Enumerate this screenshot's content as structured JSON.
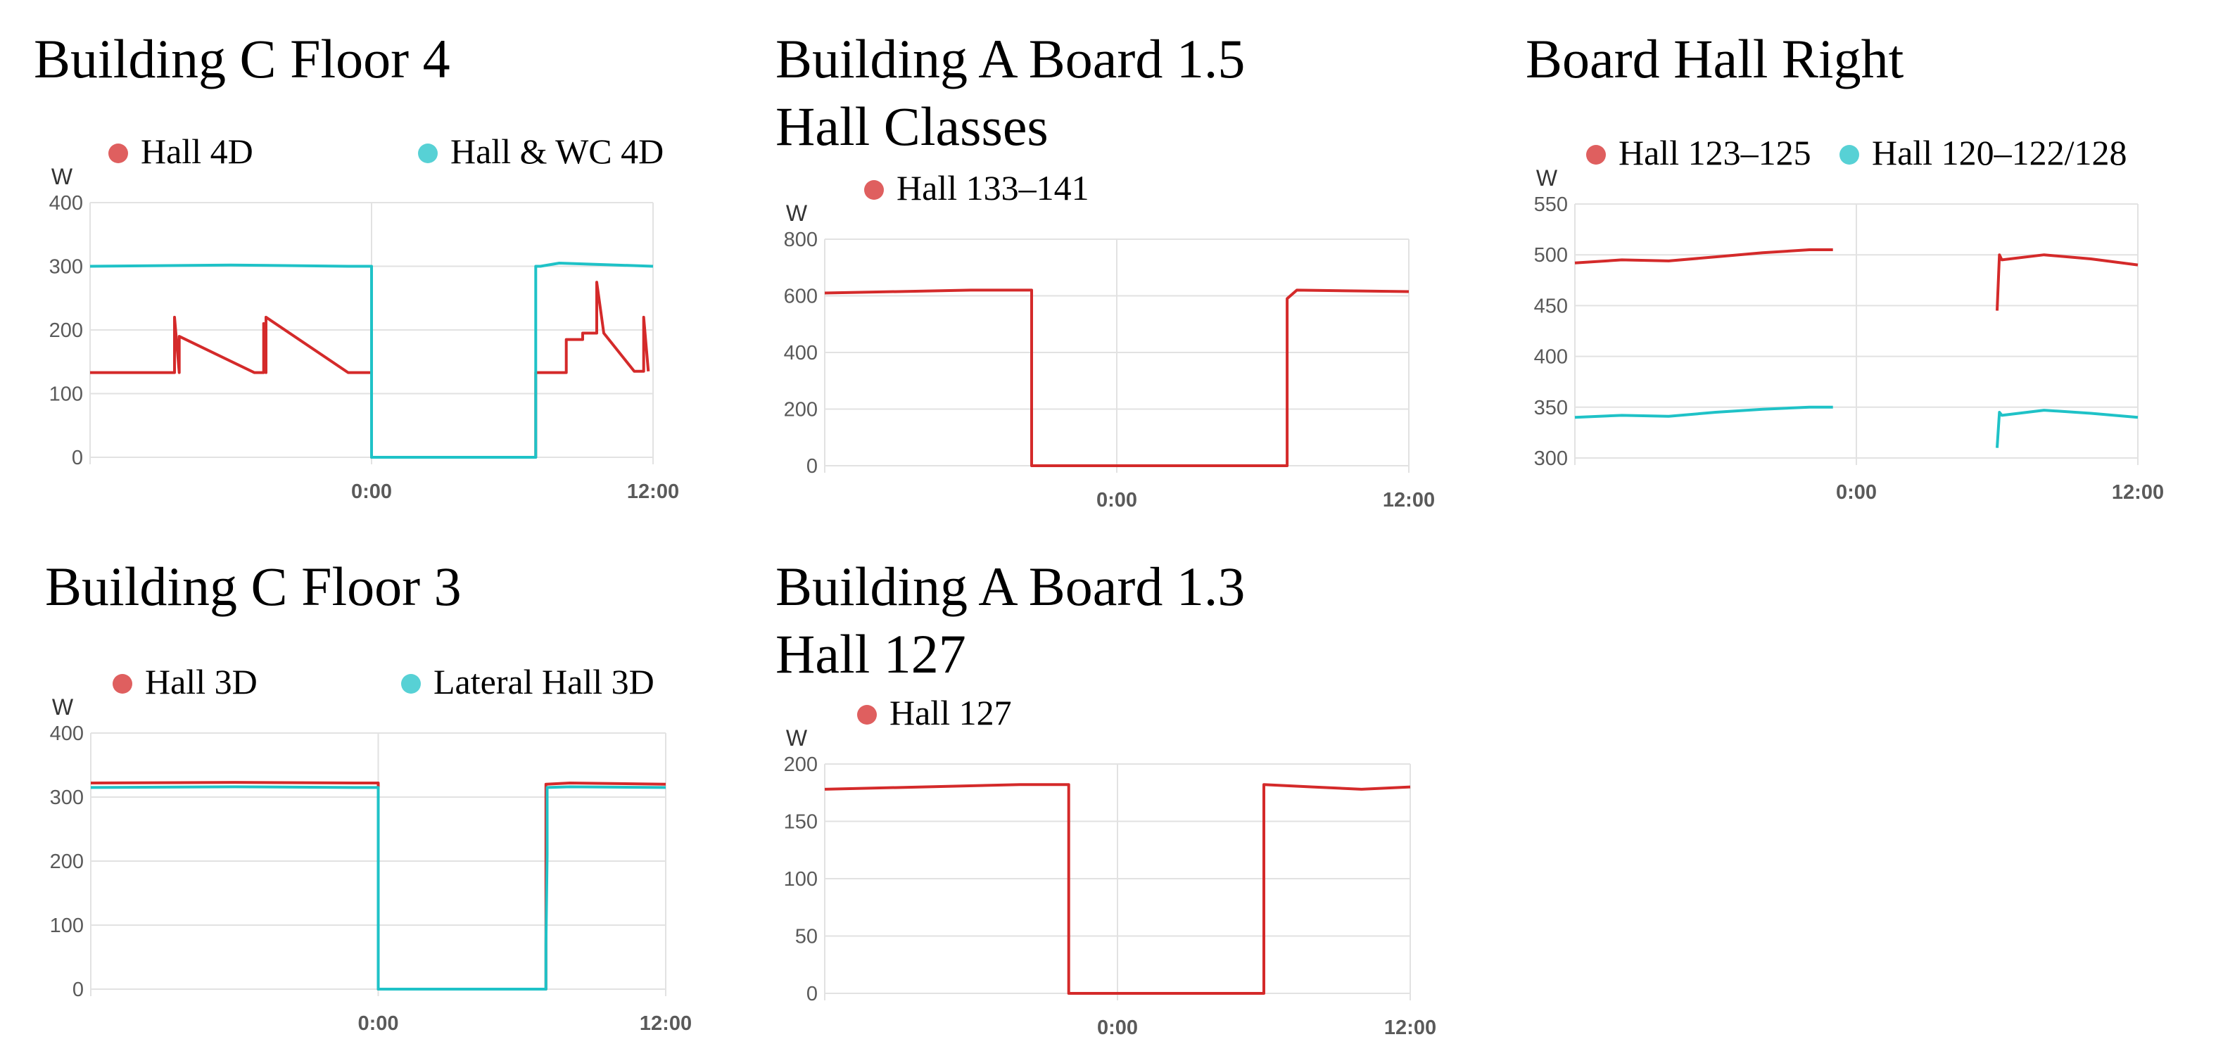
{
  "chart_data": [
    {
      "type": "line",
      "title": "Building C Floor 4",
      "ylabel": "W",
      "ylim": [
        0,
        400
      ],
      "yticks": [
        "400",
        "300",
        "200",
        "100",
        "0"
      ],
      "xticks": [
        "0:00",
        "12:00"
      ],
      "legend": "top",
      "grid": true,
      "series": [
        {
          "name": "Hall 4D",
          "color": "#d42a2a",
          "x": [
            -12,
            -9,
            -8.4,
            -8.4,
            -8.2,
            -8.2,
            -5,
            -4.6,
            -4.6,
            -4.5,
            -4.5,
            -1,
            0,
            0,
            7,
            7,
            8,
            8.3,
            8.3,
            9,
            9,
            9.6,
            9.6,
            9.9,
            9.9,
            11.2,
            11.2,
            11.6,
            11.6,
            11.8
          ],
          "y": [
            133,
            133,
            133,
            220,
            133,
            190,
            133,
            133,
            210,
            133,
            220,
            133,
            133,
            0,
            0,
            133,
            133,
            133,
            185,
            185,
            195,
            195,
            275,
            195,
            195,
            135,
            135,
            135,
            220,
            135
          ]
        },
        {
          "name": "Hall & WC 4D",
          "color": "#1fc2c7",
          "x": [
            -12,
            -6,
            -1,
            0,
            0,
            7,
            7,
            7.2,
            8,
            12
          ],
          "y": [
            300,
            302,
            300,
            300,
            0,
            0,
            300,
            300,
            305,
            300
          ]
        }
      ]
    },
    {
      "type": "line",
      "title": "Building A Board 1.5\nHall Classes",
      "ylabel": "W",
      "ylim": [
        0,
        800
      ],
      "yticks": [
        "800",
        "600",
        "400",
        "200",
        "0"
      ],
      "xticks": [
        "0:00",
        "12:00"
      ],
      "legend": "top",
      "grid": true,
      "series": [
        {
          "name": "Hall 133–141",
          "color": "#d42a2a",
          "x": [
            -12,
            -6,
            -3.5,
            -3.5,
            7,
            7,
            7.4,
            12
          ],
          "y": [
            610,
            620,
            620,
            0,
            0,
            590,
            620,
            615
          ]
        }
      ]
    },
    {
      "type": "line",
      "title": "Board Hall Right",
      "ylabel": "W",
      "ylim": [
        300,
        550
      ],
      "yticks": [
        "550",
        "500",
        "450",
        "400",
        "350",
        "300"
      ],
      "xticks": [
        "0:00",
        "12:00"
      ],
      "legend": "top",
      "grid": true,
      "series": [
        {
          "name": "Hall 123–125",
          "color": "#d42a2a",
          "x": [
            -12,
            -10,
            -8,
            -6,
            -4,
            -2,
            -1
          ],
          "y": [
            492,
            495,
            494,
            498,
            502,
            505,
            505
          ]
        },
        {
          "name": "Hall 120–122/128",
          "color": "#1fc2c7",
          "x": [
            -12,
            -10,
            -8,
            -6,
            -4,
            -2,
            -1
          ],
          "y": [
            340,
            342,
            341,
            345,
            348,
            350,
            350
          ]
        },
        {
          "name": "",
          "color": "#d42a2a",
          "x": [
            6,
            6.1,
            6.2,
            8,
            10,
            12
          ],
          "y": [
            445,
            500,
            495,
            500,
            496,
            490
          ]
        },
        {
          "name": "",
          "color": "#1fc2c7",
          "x": [
            6,
            6.1,
            6.2,
            8,
            10,
            12
          ],
          "y": [
            310,
            345,
            342,
            347,
            344,
            340
          ]
        }
      ]
    },
    {
      "type": "line",
      "title": "Building C Floor 3",
      "ylabel": "W",
      "ylim": [
        0,
        400
      ],
      "yticks": [
        "400",
        "300",
        "200",
        "100",
        "0"
      ],
      "xticks": [
        "0:00",
        "12:00"
      ],
      "legend": "top",
      "grid": true,
      "series": [
        {
          "name": "Hall 3D",
          "color": "#d42a2a",
          "x": [
            -12,
            -6,
            -1,
            0,
            0,
            7,
            7,
            8,
            12
          ],
          "y": [
            322,
            323,
            322,
            322,
            0,
            0,
            320,
            322,
            320
          ]
        },
        {
          "name": "Lateral Hall 3D",
          "color": "#1fc2c7",
          "x": [
            -12,
            -6,
            -1,
            0,
            0,
            7,
            7,
            7.05,
            7.05,
            8,
            12
          ],
          "y": [
            315,
            316,
            315,
            315,
            0,
            0,
            70,
            210,
            315,
            316,
            315
          ]
        }
      ]
    },
    {
      "type": "line",
      "title": "Building A Board 1.3\nHall 127",
      "ylabel": "W",
      "ylim": [
        0,
        200
      ],
      "yticks": [
        "200",
        "150",
        "100",
        "50",
        "0"
      ],
      "xticks": [
        "0:00",
        "12:00"
      ],
      "legend": "top",
      "grid": true,
      "series": [
        {
          "name": "Hall 127",
          "color": "#d42a2a",
          "x": [
            -12,
            -8,
            -4,
            -2,
            -2,
            6,
            6,
            8,
            10,
            12
          ],
          "y": [
            178,
            180,
            182,
            182,
            0,
            0,
            182,
            180,
            178,
            180
          ]
        }
      ]
    }
  ]
}
